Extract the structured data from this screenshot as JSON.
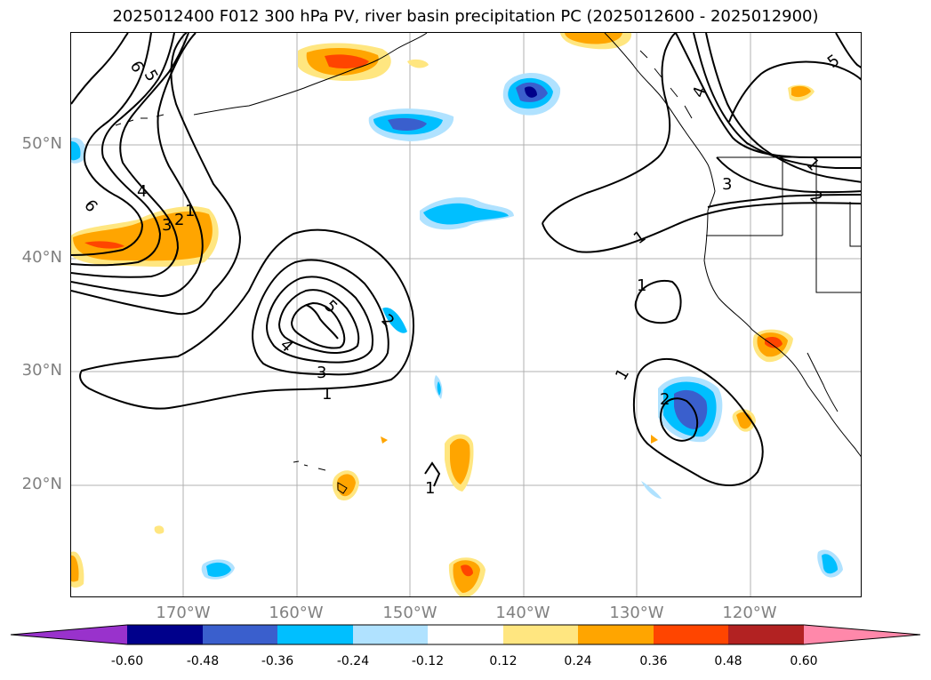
{
  "title": "2025012400 F012 300 hPa PV, river basin precipitation PC (2025012600 - 2025012900)",
  "lat_labels": [
    "50°N",
    "40°N",
    "30°N",
    "20°N"
  ],
  "lon_labels": [
    "170°W",
    "160°W",
    "150°W",
    "140°W",
    "130°W",
    "120°W"
  ],
  "colorbar": {
    "ticks": [
      "-0.60",
      "-0.48",
      "-0.36",
      "-0.24",
      "-0.12",
      "0.12",
      "0.24",
      "0.36",
      "0.48",
      "0.60"
    ],
    "colors": [
      "#9932cc",
      "#00008b",
      "#3a5fcd",
      "#00bfff",
      "#b0e2ff",
      "#ffffff",
      "#ffe680",
      "#ffa500",
      "#ff4500",
      "#b22222",
      "#ff88aa"
    ]
  },
  "pv_contour_labels": [
    "6",
    "5",
    "4",
    "3",
    "2",
    "1",
    "6",
    "5",
    "4",
    "3",
    "1",
    "2",
    "1",
    "1",
    "1",
    "2",
    "4",
    "3",
    "2",
    "1",
    "5",
    "1"
  ]
}
